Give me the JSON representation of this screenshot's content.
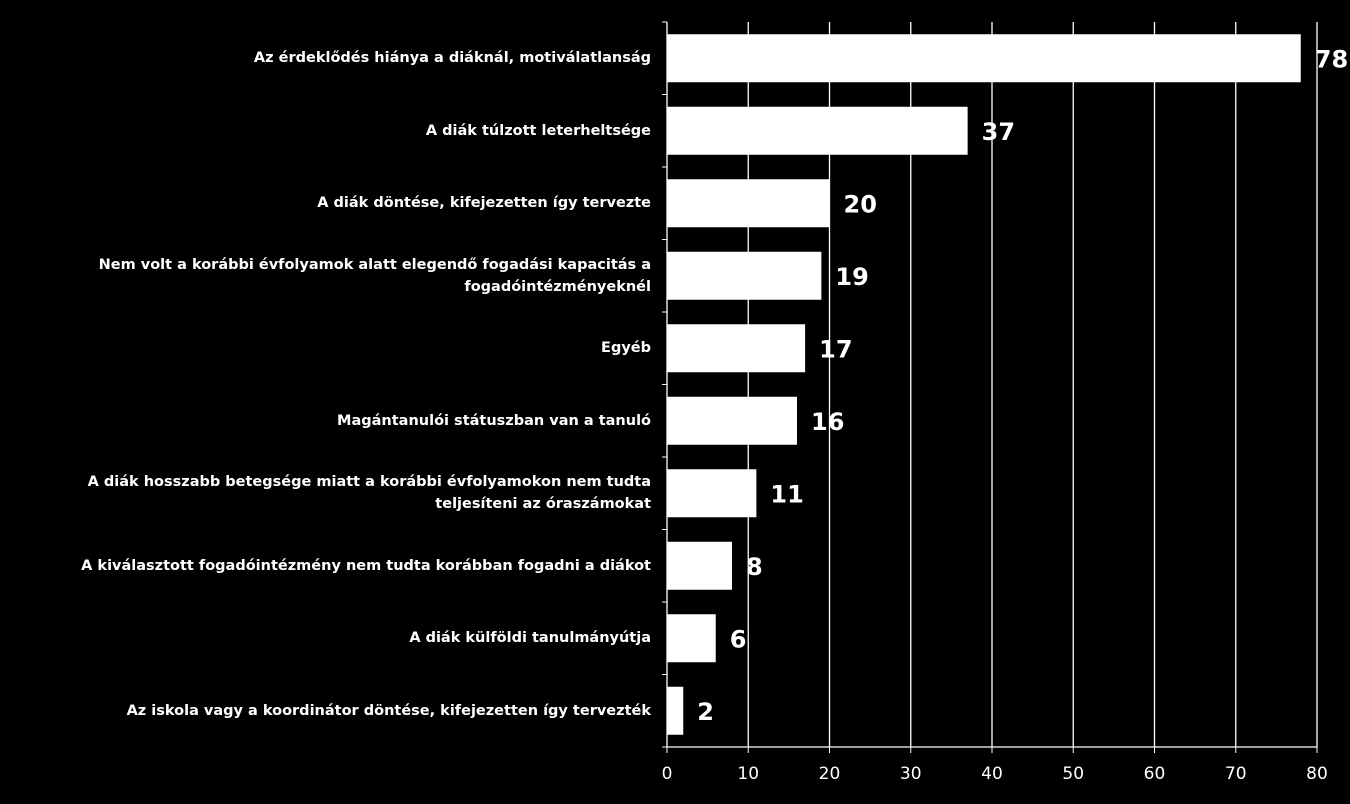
{
  "chart_data": {
    "type": "bar",
    "orientation": "horizontal",
    "title": "",
    "xlabel": "",
    "ylabel": "",
    "categories": [
      "Az érdeklődés hiánya a diáknál, motiválatlanság",
      "A diák túlzott leterheltsége",
      "A diák döntése, kifejezetten így tervezte",
      "Nem volt a korábbi évfolyamok alatt elegendő fogadási kapacitás a fogadóintézményeknél",
      "Egyéb",
      "Magántanulói státuszban van a tanuló",
      "A diák hosszabb betegsége miatt a korábbi évfolyamokon nem tudta teljesíteni az óraszámokat",
      "A kiválasztott fogadóintézmény nem tudta korábban fogadni a diákot",
      "A diák külföldi tanulmányútja",
      "Az iskola vagy a koordinátor döntése, kifejezetten így tervezték"
    ],
    "values": [
      78,
      37,
      20,
      19,
      17,
      16,
      11,
      8,
      6,
      2
    ],
    "xlim": [
      0,
      80
    ],
    "xticks": [
      0,
      10,
      20,
      30,
      40,
      50,
      60,
      70,
      80
    ],
    "grid": true,
    "legend": "none",
    "colors": {
      "background": "#000000",
      "bar": "#ffffff",
      "grid": "#ffffff",
      "text": "#ffffff"
    }
  }
}
